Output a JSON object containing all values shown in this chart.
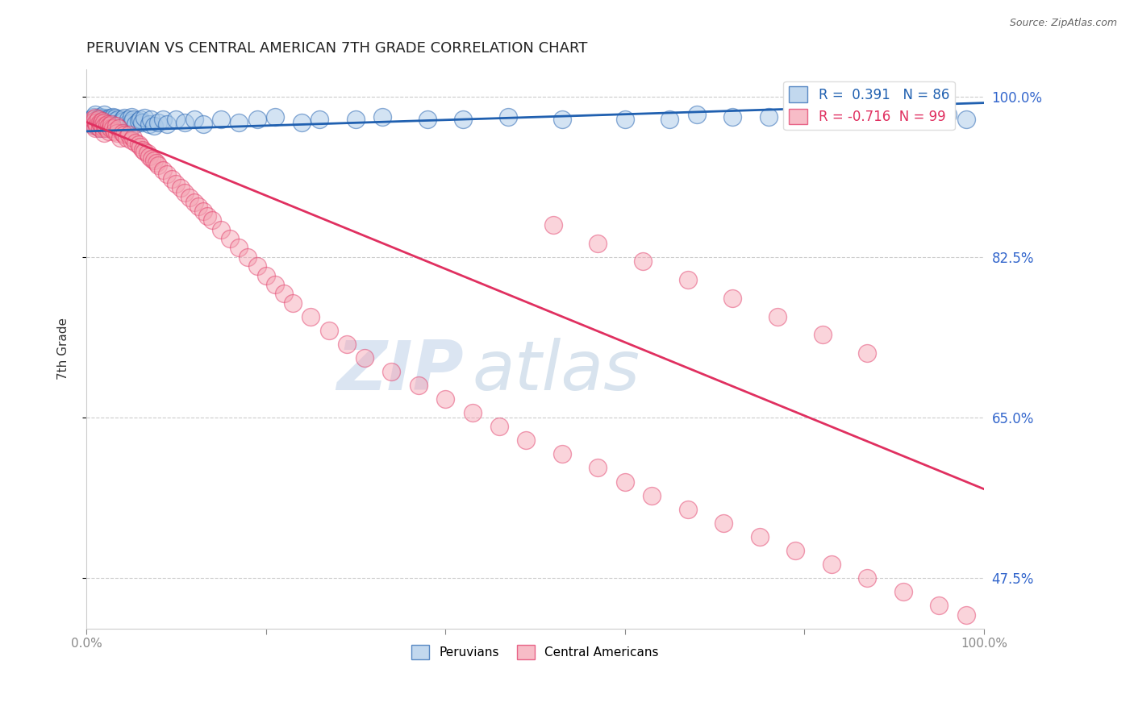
{
  "title": "PERUVIAN VS CENTRAL AMERICAN 7TH GRADE CORRELATION CHART",
  "source_text": "Source: ZipAtlas.com",
  "ylabel": "7th Grade",
  "xlim": [
    0.0,
    1.0
  ],
  "ylim": [
    0.42,
    1.03
  ],
  "yticks": [
    1.0,
    0.825,
    0.65,
    0.475
  ],
  "ytick_labels": [
    "100.0%",
    "82.5%",
    "65.0%",
    "47.5%"
  ],
  "blue_R": 0.391,
  "blue_N": 86,
  "pink_R": -0.716,
  "pink_N": 99,
  "blue_color": "#a8c8e8",
  "pink_color": "#f4a0b0",
  "blue_line_color": "#2060b0",
  "pink_line_color": "#e03060",
  "watermark_zip": "ZIP",
  "watermark_atlas": "atlas",
  "legend_label_blue": "Peruvians",
  "legend_label_pink": "Central Americans",
  "blue_line_x0": 0.0,
  "blue_line_y0": 0.962,
  "blue_line_x1": 1.0,
  "blue_line_y1": 0.993,
  "pink_line_x0": 0.0,
  "pink_line_y0": 0.972,
  "pink_line_x1": 1.0,
  "pink_line_y1": 0.572,
  "blue_scatter_x": [
    0.005,
    0.007,
    0.008,
    0.009,
    0.01,
    0.01,
    0.01,
    0.012,
    0.013,
    0.015,
    0.015,
    0.015,
    0.016,
    0.017,
    0.018,
    0.018,
    0.019,
    0.02,
    0.02,
    0.02,
    0.02,
    0.021,
    0.022,
    0.023,
    0.024,
    0.025,
    0.025,
    0.026,
    0.027,
    0.028,
    0.03,
    0.03,
    0.03,
    0.031,
    0.032,
    0.033,
    0.035,
    0.036,
    0.038,
    0.04,
    0.04,
    0.041,
    0.042,
    0.045,
    0.047,
    0.05,
    0.05,
    0.052,
    0.055,
    0.058,
    0.06,
    0.062,
    0.065,
    0.07,
    0.072,
    0.075,
    0.08,
    0.085,
    0.09,
    0.1,
    0.11,
    0.12,
    0.13,
    0.15,
    0.17,
    0.19,
    0.21,
    0.24,
    0.26,
    0.3,
    0.33,
    0.38,
    0.42,
    0.47,
    0.53,
    0.6,
    0.68,
    0.76,
    0.85,
    0.93,
    0.96,
    0.98,
    0.65,
    0.72,
    0.8,
    0.88
  ],
  "blue_scatter_y": [
    0.975,
    0.972,
    0.978,
    0.97,
    0.968,
    0.973,
    0.98,
    0.975,
    0.97,
    0.972,
    0.978,
    0.965,
    0.973,
    0.977,
    0.97,
    0.975,
    0.968,
    0.972,
    0.977,
    0.965,
    0.98,
    0.975,
    0.97,
    0.973,
    0.968,
    0.975,
    0.972,
    0.977,
    0.97,
    0.975,
    0.972,
    0.978,
    0.965,
    0.973,
    0.977,
    0.97,
    0.975,
    0.968,
    0.972,
    0.975,
    0.968,
    0.973,
    0.977,
    0.97,
    0.975,
    0.972,
    0.978,
    0.975,
    0.97,
    0.973,
    0.975,
    0.972,
    0.977,
    0.97,
    0.975,
    0.968,
    0.972,
    0.975,
    0.97,
    0.975,
    0.972,
    0.975,
    0.97,
    0.975,
    0.972,
    0.975,
    0.978,
    0.972,
    0.975,
    0.975,
    0.978,
    0.975,
    0.975,
    0.978,
    0.975,
    0.975,
    0.98,
    0.978,
    0.975,
    0.978,
    0.98,
    0.975,
    0.975,
    0.978,
    0.975,
    0.978
  ],
  "pink_scatter_x": [
    0.005,
    0.007,
    0.008,
    0.009,
    0.01,
    0.01,
    0.011,
    0.012,
    0.013,
    0.015,
    0.015,
    0.016,
    0.017,
    0.018,
    0.019,
    0.02,
    0.02,
    0.021,
    0.022,
    0.023,
    0.025,
    0.025,
    0.027,
    0.028,
    0.03,
    0.031,
    0.033,
    0.034,
    0.036,
    0.038,
    0.04,
    0.042,
    0.045,
    0.048,
    0.05,
    0.052,
    0.055,
    0.058,
    0.06,
    0.063,
    0.065,
    0.068,
    0.07,
    0.073,
    0.075,
    0.078,
    0.08,
    0.085,
    0.09,
    0.095,
    0.1,
    0.105,
    0.11,
    0.115,
    0.12,
    0.125,
    0.13,
    0.135,
    0.14,
    0.15,
    0.16,
    0.17,
    0.18,
    0.19,
    0.2,
    0.21,
    0.22,
    0.23,
    0.25,
    0.27,
    0.29,
    0.31,
    0.34,
    0.37,
    0.4,
    0.43,
    0.46,
    0.49,
    0.53,
    0.57,
    0.6,
    0.63,
    0.67,
    0.71,
    0.75,
    0.79,
    0.83,
    0.87,
    0.91,
    0.95,
    0.98,
    0.52,
    0.57,
    0.62,
    0.67,
    0.72,
    0.77,
    0.82,
    0.87
  ],
  "pink_scatter_y": [
    0.972,
    0.975,
    0.968,
    0.973,
    0.977,
    0.965,
    0.972,
    0.968,
    0.975,
    0.972,
    0.965,
    0.97,
    0.968,
    0.973,
    0.965,
    0.972,
    0.96,
    0.968,
    0.965,
    0.97,
    0.968,
    0.962,
    0.965,
    0.97,
    0.965,
    0.962,
    0.968,
    0.96,
    0.965,
    0.955,
    0.96,
    0.958,
    0.955,
    0.958,
    0.952,
    0.955,
    0.95,
    0.948,
    0.945,
    0.942,
    0.94,
    0.938,
    0.935,
    0.932,
    0.93,
    0.928,
    0.925,
    0.92,
    0.915,
    0.91,
    0.905,
    0.9,
    0.895,
    0.89,
    0.885,
    0.88,
    0.875,
    0.87,
    0.865,
    0.855,
    0.845,
    0.835,
    0.825,
    0.815,
    0.805,
    0.795,
    0.785,
    0.775,
    0.76,
    0.745,
    0.73,
    0.715,
    0.7,
    0.685,
    0.67,
    0.655,
    0.64,
    0.625,
    0.61,
    0.595,
    0.58,
    0.565,
    0.55,
    0.535,
    0.52,
    0.505,
    0.49,
    0.475,
    0.46,
    0.445,
    0.435,
    0.86,
    0.84,
    0.82,
    0.8,
    0.78,
    0.76,
    0.74,
    0.72
  ]
}
